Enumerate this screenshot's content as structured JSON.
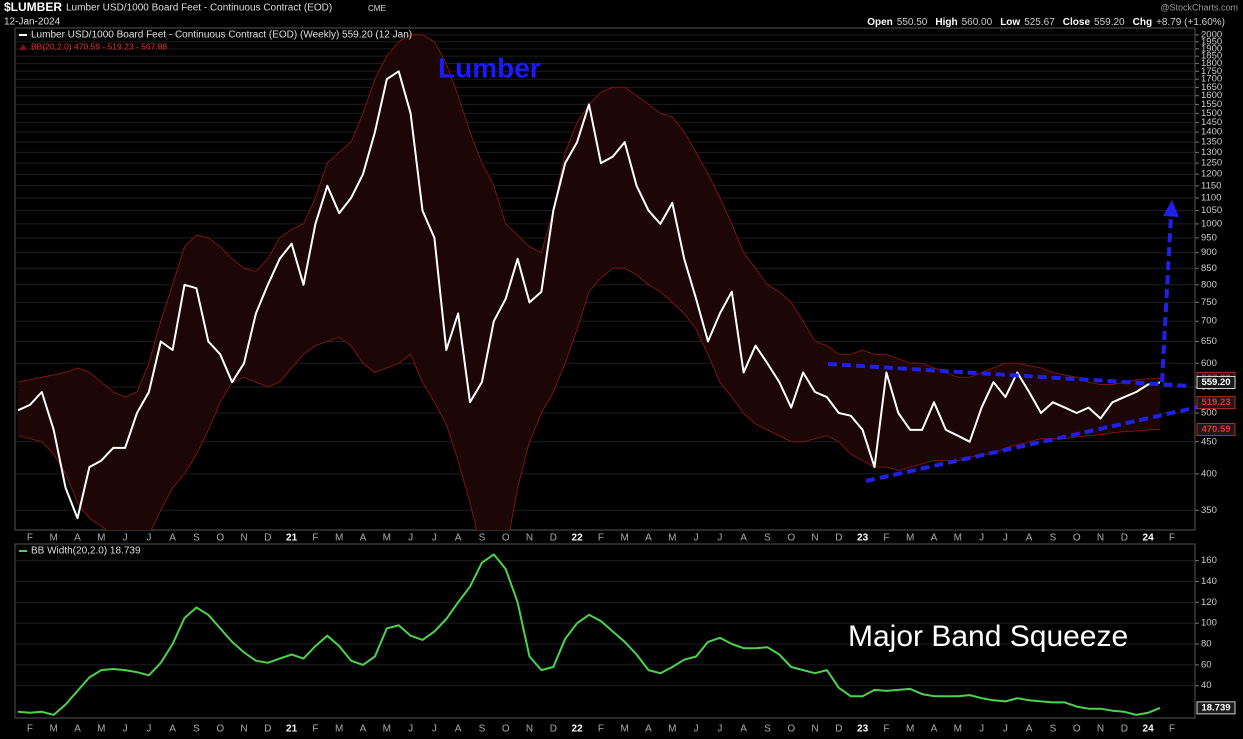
{
  "header": {
    "symbol": "$LUMBER",
    "description": "Lumber USD/1000 Board Feet - Continuous Contract (EOD)",
    "exchange": "CME",
    "date": "12-Jan-2024",
    "source": "@StockCharts.com",
    "quote": [
      {
        "label": "Open",
        "value": "550.50"
      },
      {
        "label": "High",
        "value": "560.00"
      },
      {
        "label": "Low",
        "value": "525.67"
      },
      {
        "label": "Close",
        "value": "559.20"
      },
      {
        "label": "Chg",
        "value": "+8.79 (+1.60%)"
      }
    ]
  },
  "chart_data": [
    {
      "type": "line",
      "log_scale": true,
      "grid": true,
      "annotations": [
        {
          "text": "Lumber",
          "color": "#1a1aff"
        }
      ],
      "categories": [
        null,
        "F",
        null,
        "M",
        null,
        "A",
        null,
        "M",
        null,
        "J",
        null,
        "J",
        null,
        "A",
        null,
        "S",
        null,
        "O",
        null,
        "N",
        null,
        "D",
        null,
        "21",
        null,
        "F",
        null,
        "M",
        null,
        "A",
        null,
        "M",
        null,
        "J",
        null,
        "J",
        null,
        "A",
        null,
        "S",
        null,
        "O",
        null,
        "N",
        null,
        "D",
        null,
        "22",
        null,
        "F",
        null,
        "M",
        null,
        "A",
        null,
        "M",
        null,
        "J",
        null,
        "J",
        null,
        "A",
        null,
        "S",
        null,
        "O",
        null,
        "N",
        null,
        "D",
        null,
        "23",
        null,
        "F",
        null,
        "M",
        null,
        "A",
        null,
        "M",
        null,
        "J",
        null,
        "J",
        null,
        "A",
        null,
        "S",
        null,
        "O",
        null,
        "N",
        null,
        "D",
        null,
        "24",
        null,
        "F"
      ],
      "bands": {
        "name": "BB(20,2.0) 470.59 - 519.23 - 567.88",
        "color": "#7a1414",
        "upper": [
          560,
          565,
          570,
          575,
          580,
          590,
          580,
          560,
          540,
          530,
          540,
          600,
          700,
          800,
          920,
          960,
          950,
          920,
          880,
          850,
          840,
          880,
          950,
          980,
          1000,
          1100,
          1250,
          1300,
          1350,
          1500,
          1700,
          1850,
          1950,
          2000,
          2000,
          1950,
          1800,
          1600,
          1400,
          1250,
          1150,
          1000,
          960,
          920,
          900,
          1050,
          1300,
          1450,
          1550,
          1620,
          1650,
          1650,
          1600,
          1550,
          1500,
          1480,
          1400,
          1300,
          1200,
          1100,
          1000,
          900,
          850,
          800,
          780,
          750,
          700,
          650,
          640,
          620,
          620,
          630,
          620,
          620,
          610,
          600,
          600,
          590,
          580,
          570,
          570,
          580,
          590,
          600,
          600,
          595,
          590,
          580,
          575,
          570,
          560,
          555,
          555,
          560,
          565,
          567,
          567.88,
          null
        ],
        "lower": [
          460,
          455,
          450,
          430,
          400,
          360,
          340,
          330,
          320,
          310,
          300,
          320,
          350,
          380,
          400,
          430,
          470,
          520,
          560,
          570,
          560,
          550,
          560,
          590,
          620,
          640,
          650,
          660,
          640,
          600,
          580,
          590,
          600,
          620,
          560,
          520,
          480,
          420,
          360,
          300,
          280,
          300,
          380,
          450,
          500,
          540,
          600,
          680,
          780,
          820,
          850,
          850,
          830,
          800,
          780,
          750,
          720,
          680,
          620,
          560,
          530,
          500,
          480,
          470,
          460,
          450,
          450,
          455,
          460,
          450,
          430,
          420,
          410,
          410,
          405,
          410,
          415,
          420,
          420,
          420,
          425,
          430,
          430,
          440,
          445,
          450,
          455,
          455,
          455,
          458,
          460,
          462,
          465,
          467,
          468,
          470,
          470.59,
          null
        ]
      },
      "series": [
        {
          "name": "Lumber USD/1000 Board Feet - Continuous Contract (EOD) (Weekly) 559.20 (12 Jan)",
          "color": "#ffffff",
          "values": [
            505,
            515,
            540,
            470,
            380,
            340,
            410,
            420,
            440,
            440,
            500,
            540,
            650,
            630,
            800,
            790,
            650,
            620,
            560,
            600,
            720,
            800,
            880,
            930,
            800,
            1000,
            1150,
            1040,
            1100,
            1200,
            1400,
            1700,
            1750,
            1500,
            1050,
            950,
            630,
            720,
            520,
            560,
            700,
            760,
            880,
            750,
            780,
            1050,
            1250,
            1350,
            1550,
            1250,
            1280,
            1350,
            1150,
            1050,
            1000,
            1080,
            880,
            760,
            650,
            720,
            780,
            580,
            640,
            600,
            560,
            510,
            580,
            540,
            530,
            500,
            495,
            470,
            410,
            580,
            500,
            470,
            470,
            520,
            470,
            460,
            450,
            510,
            560,
            530,
            580,
            540,
            500,
            520,
            510,
            500,
            510,
            490,
            520,
            530,
            540,
            555,
            559.2,
            null
          ]
        }
      ],
      "ylim": [
        328,
        2036
      ],
      "yticks": [
        350,
        400,
        450,
        500,
        550,
        600,
        650,
        700,
        750,
        800,
        850,
        900,
        950,
        1000,
        1050,
        1100,
        1150,
        1200,
        1250,
        1300,
        1350,
        1400,
        1450,
        1500,
        1550,
        1600,
        1650,
        1700,
        1750,
        1800,
        1850,
        1900,
        1950,
        2000
      ],
      "markers": [
        {
          "value": 567.88,
          "label": "567.88",
          "color": "#e03030"
        },
        {
          "value": 559.2,
          "label": "559.20",
          "color": "#ffffff"
        },
        {
          "value": 519.23,
          "label": "519.23",
          "color": "#e03030"
        },
        {
          "value": 470.59,
          "label": "470.59",
          "color": "#e03030"
        }
      ]
    },
    {
      "type": "line",
      "grid": true,
      "annotations": [
        {
          "text": "Major Band Squeeze",
          "color": "#ffffff"
        }
      ],
      "categories": [
        null,
        "F",
        null,
        "M",
        null,
        "A",
        null,
        "M",
        null,
        "J",
        null,
        "J",
        null,
        "A",
        null,
        "S",
        null,
        "O",
        null,
        "N",
        null,
        "D",
        null,
        "21",
        null,
        "F",
        null,
        "M",
        null,
        "A",
        null,
        "M",
        null,
        "J",
        null,
        "J",
        null,
        "A",
        null,
        "S",
        null,
        "O",
        null,
        "N",
        null,
        "D",
        null,
        "22",
        null,
        "F",
        null,
        "M",
        null,
        "A",
        null,
        "M",
        null,
        "J",
        null,
        "J",
        null,
        "A",
        null,
        "S",
        null,
        "O",
        null,
        "N",
        null,
        "D",
        null,
        "23",
        null,
        "F",
        null,
        "M",
        null,
        "A",
        null,
        "M",
        null,
        "J",
        null,
        "J",
        null,
        "A",
        null,
        "S",
        null,
        "O",
        null,
        "N",
        null,
        "D",
        null,
        "24",
        null,
        "F"
      ],
      "series": [
        {
          "name": "BB Width(20,2.0) 18.739",
          "color": "#4cd24c",
          "values": [
            15,
            14,
            15,
            12,
            22,
            35,
            48,
            55,
            56,
            55,
            53,
            50,
            62,
            80,
            105,
            115,
            108,
            95,
            82,
            72,
            64,
            62,
            66,
            70,
            66,
            78,
            88,
            78,
            64,
            60,
            68,
            95,
            98,
            88,
            84,
            92,
            104,
            120,
            135,
            158,
            166,
            152,
            120,
            68,
            55,
            58,
            85,
            100,
            108,
            102,
            92,
            82,
            70,
            55,
            52,
            58,
            65,
            68,
            82,
            86,
            80,
            76,
            76,
            77,
            70,
            58,
            55,
            52,
            55,
            38,
            30,
            30,
            36,
            35,
            36,
            37,
            32,
            30,
            30,
            30,
            31,
            28,
            26,
            25,
            28,
            26,
            25,
            24,
            24,
            20,
            18,
            18,
            16,
            15,
            12,
            14,
            18.739,
            null
          ]
        }
      ],
      "ylim": [
        10,
        175
      ],
      "yticks": [
        40,
        60,
        80,
        100,
        120,
        140,
        160
      ],
      "markers": [
        {
          "value": 18.739,
          "label": "18.739",
          "color": "#ffffff"
        }
      ]
    }
  ]
}
